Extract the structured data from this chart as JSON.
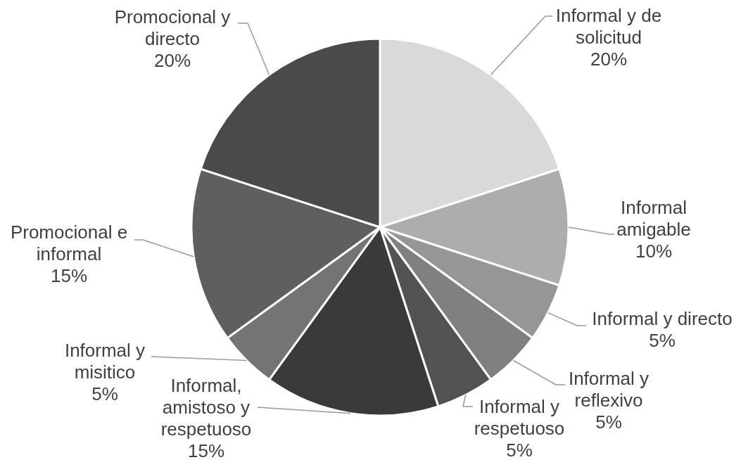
{
  "chart_data": {
    "type": "pie",
    "categories": [
      "Informal y de solicitud",
      "Informal amigable",
      "Informal y directo",
      "Informal y reflexivo",
      "Informal y respetuoso",
      "Informal, amistoso y respetuoso",
      "Informal y misitico",
      "Promocional e informal",
      "Promocional y directo"
    ],
    "values": [
      20,
      10,
      5,
      5,
      5,
      15,
      5,
      15,
      20
    ],
    "value_labels": [
      "20%",
      "10%",
      "5%",
      "5%",
      "5%",
      "15%",
      "5%",
      "15%",
      "20%"
    ],
    "colors": [
      "#d9d9d9",
      "#adadad",
      "#969696",
      "#808080",
      "#525252",
      "#3a3a3a",
      "#747474",
      "#5f5f5f",
      "#4a4a4a"
    ]
  }
}
